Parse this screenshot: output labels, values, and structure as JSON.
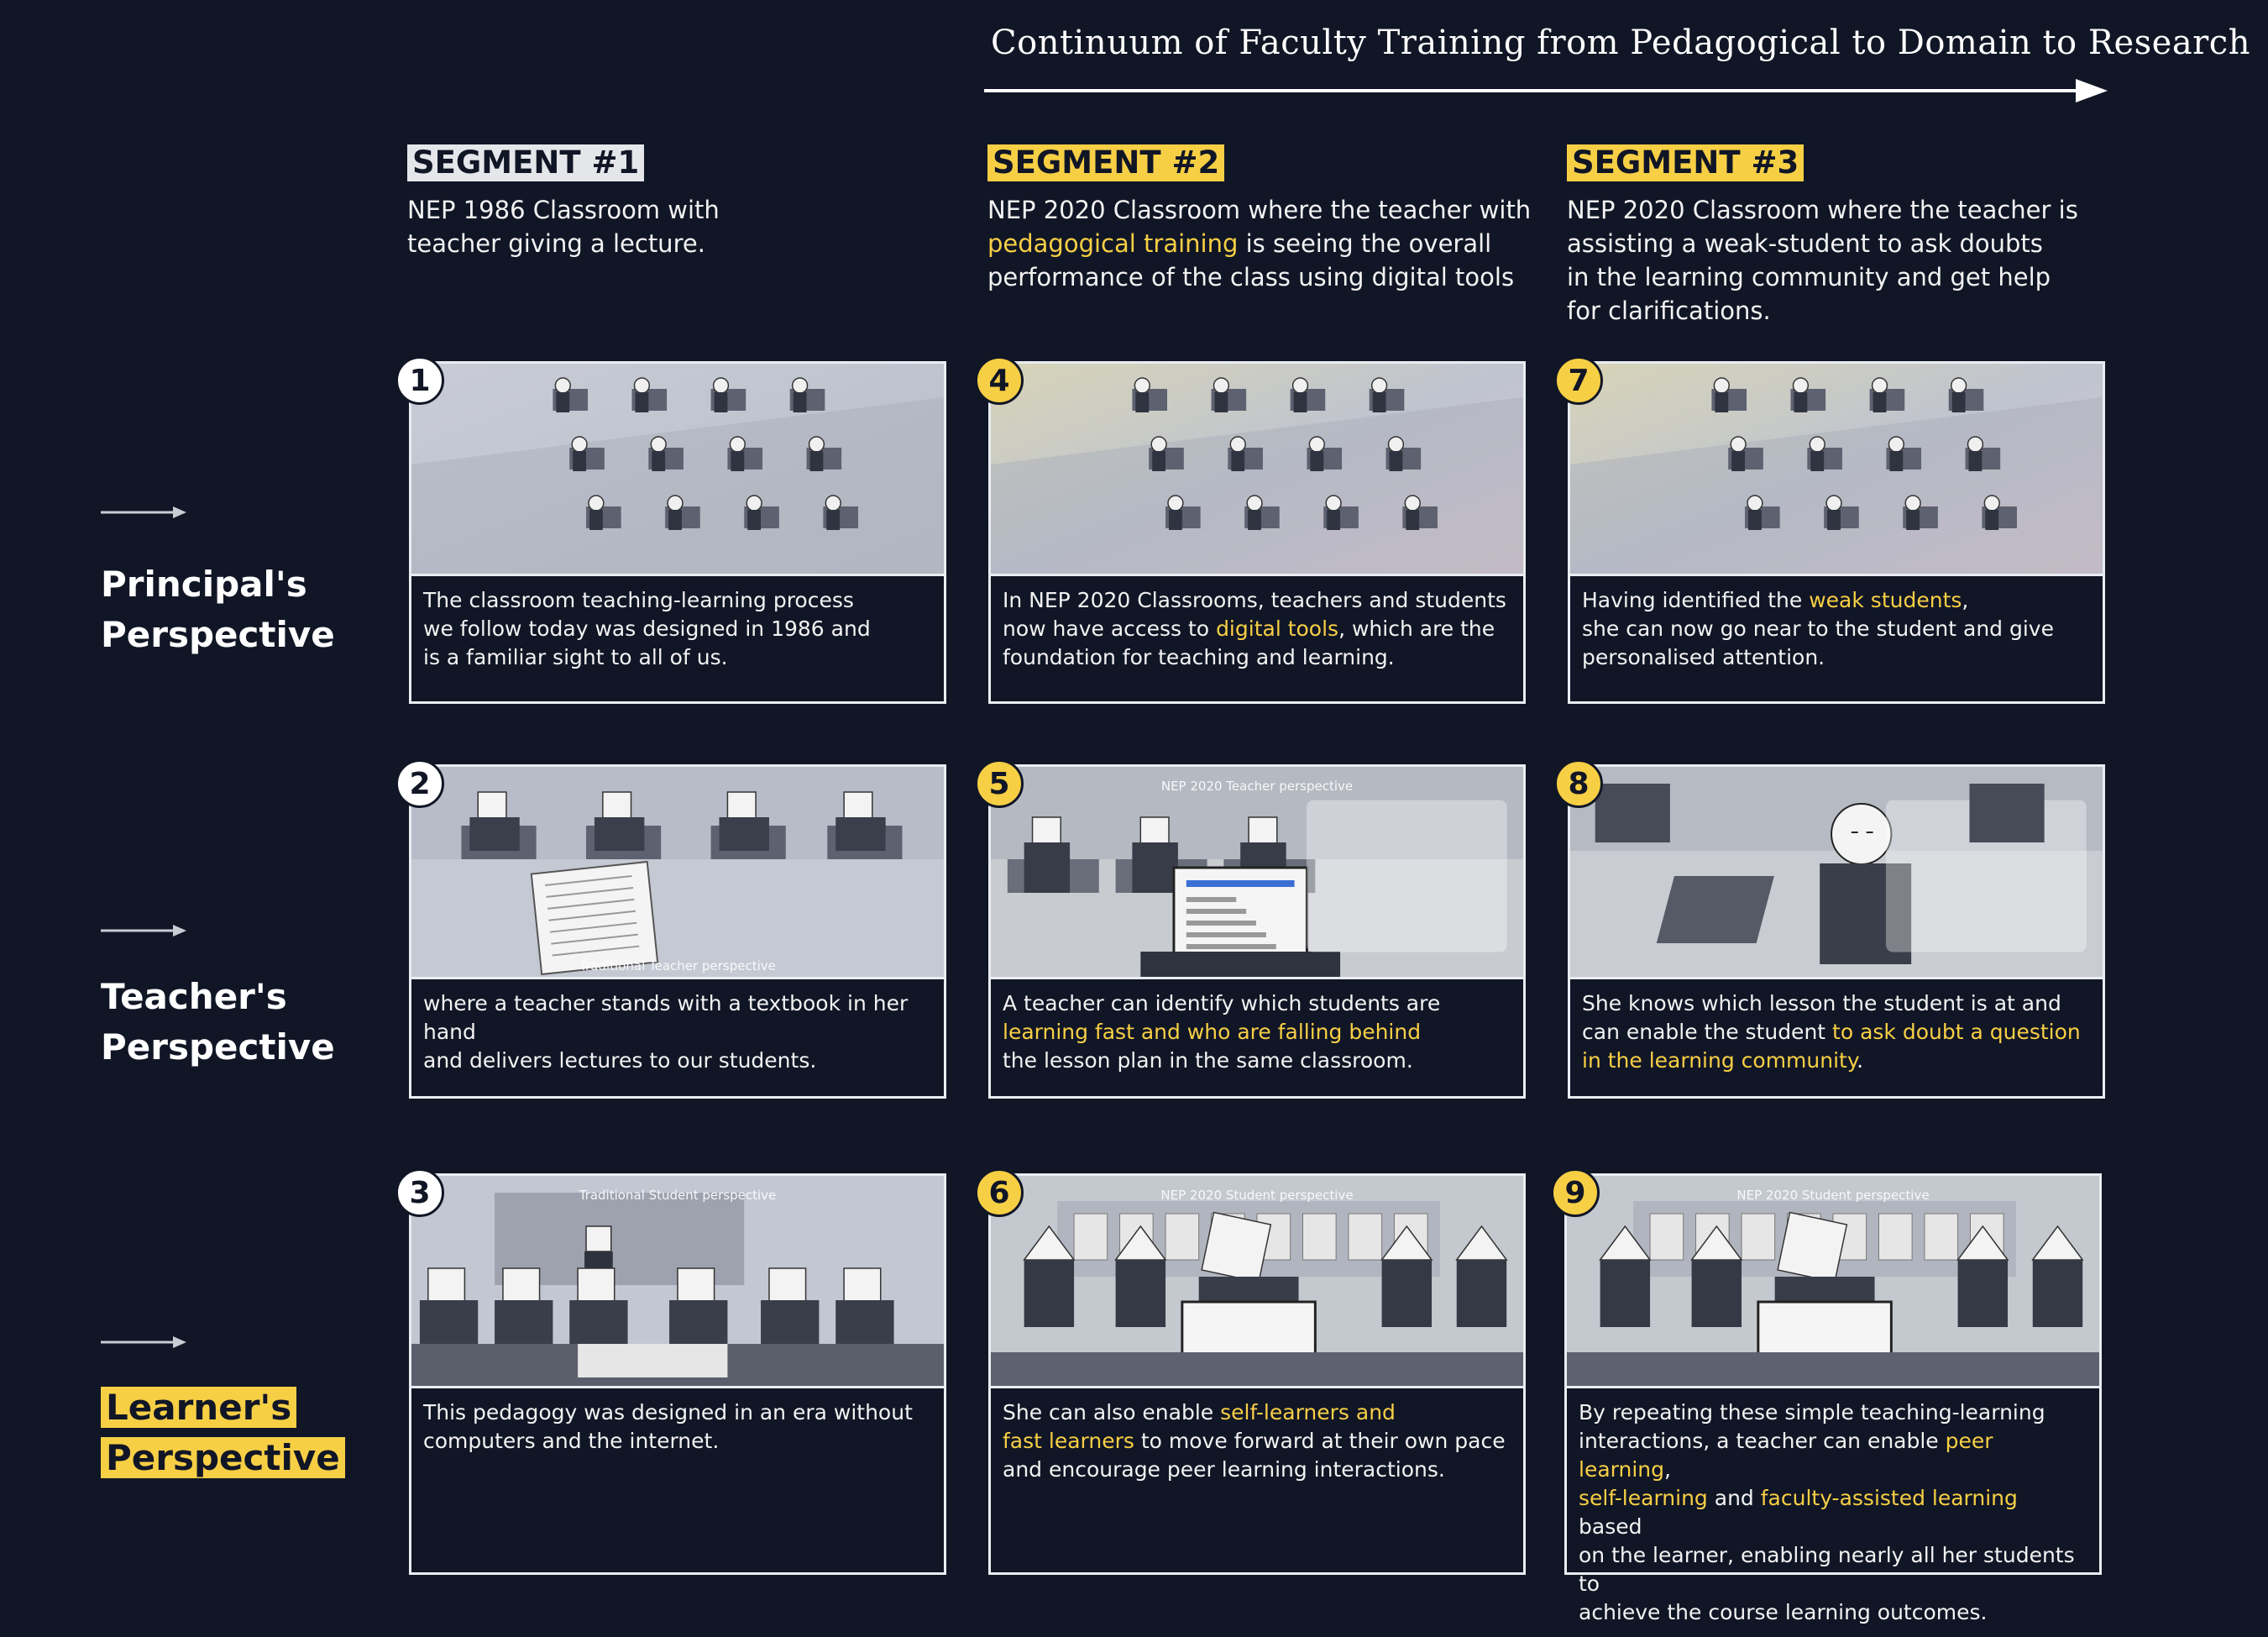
{
  "header": {
    "title": "Continuum of Faculty Training from Pedagogical to Domain to Research"
  },
  "segments": [
    {
      "label": "SEGMENT #1",
      "desc": [
        {
          "t": "NEP 1986 Classroom with "
        },
        {
          "br": true
        },
        {
          "t": "teacher giving a lecture."
        }
      ]
    },
    {
      "label": "SEGMENT #2",
      "desc": [
        {
          "t": "NEP 2020 Classroom where the teacher with "
        },
        {
          "br": true
        },
        {
          "t": "pedagogical training",
          "h": true
        },
        {
          "t": " is seeing the overall "
        },
        {
          "br": true
        },
        {
          "t": "performance of the class using digital tools"
        }
      ]
    },
    {
      "label": "SEGMENT #3",
      "desc": [
        {
          "t": "NEP 2020 Classroom where the teacher is "
        },
        {
          "br": true
        },
        {
          "t": "assisting a weak-student to ask doubts "
        },
        {
          "br": true
        },
        {
          "t": "in the learning community and get help "
        },
        {
          "br": true
        },
        {
          "t": "for clarifications."
        }
      ]
    }
  ],
  "rows": [
    {
      "label_line1": "Principal's",
      "label_line2": "Perspective"
    },
    {
      "label_line1": "Teacher's",
      "label_line2": "Perspective"
    },
    {
      "label_line1": "Learner's",
      "label_line2": "Perspective"
    }
  ],
  "panels": [
    {
      "number": "1",
      "caption": "",
      "text": [
        {
          "t": "The classroom teaching-learning process"
        },
        {
          "br": true
        },
        {
          "t": "we follow today was designed in 1986 and"
        },
        {
          "br": true
        },
        {
          "t": "is a familiar sight to all of us."
        }
      ]
    },
    {
      "number": "2",
      "caption": "Traditional Teacher perspective",
      "text": [
        {
          "t": "where a teacher stands with a textbook in her hand"
        },
        {
          "br": true
        },
        {
          "t": "and delivers lectures to our students."
        }
      ]
    },
    {
      "number": "3",
      "caption": "Traditional Student perspective",
      "text": [
        {
          "t": "This pedagogy was designed in an era without"
        },
        {
          "br": true
        },
        {
          "t": "computers and the internet."
        }
      ]
    },
    {
      "number": "4",
      "caption": "",
      "text": [
        {
          "t": "In NEP 2020 Classrooms, teachers and students"
        },
        {
          "br": true
        },
        {
          "t": "now have access to "
        },
        {
          "t": "digital tools",
          "h": true
        },
        {
          "t": ", which are the"
        },
        {
          "br": true
        },
        {
          "t": "foundation for teaching    and learning."
        }
      ]
    },
    {
      "number": "5",
      "caption": "NEP 2020 Teacher perspective",
      "text": [
        {
          "t": "A teacher can identify which students are"
        },
        {
          "br": true
        },
        {
          "t": "learning fast and who are falling behind",
          "h": true
        },
        {
          "br": true
        },
        {
          "t": "the lesson plan in the same classroom."
        }
      ]
    },
    {
      "number": "6",
      "caption": "NEP 2020 Student perspective",
      "text": [
        {
          "t": "She can also enable "
        },
        {
          "t": "self-learners and",
          "h": true
        },
        {
          "br": true
        },
        {
          "t": "fast learners",
          "h": true
        },
        {
          "t": " to move forward at their own pace"
        },
        {
          "br": true
        },
        {
          "t": "and encourage peer learning interactions."
        }
      ]
    },
    {
      "number": "7",
      "caption": "",
      "text": [
        {
          "t": "Having identified the "
        },
        {
          "t": "weak students",
          "h": true
        },
        {
          "t": ","
        },
        {
          "br": true
        },
        {
          "t": "she can now go near to the student and give"
        },
        {
          "br": true
        },
        {
          "t": "personalised attention."
        }
      ]
    },
    {
      "number": "8",
      "caption": "",
      "text": [
        {
          "t": "She knows which lesson the student is at and"
        },
        {
          "br": true
        },
        {
          "t": "can enable the student "
        },
        {
          "t": "to ask doubt a question",
          "h": true
        },
        {
          "br": true
        },
        {
          "t": "in the learning community",
          "h": true
        },
        {
          "t": "."
        }
      ]
    },
    {
      "number": "9",
      "caption": "NEP 2020 Student perspective",
      "text": [
        {
          "t": "By repeating these simple teaching-learning"
        },
        {
          "br": true
        },
        {
          "t": "interactions, a teacher can enable "
        },
        {
          "t": "peer learning",
          "h": true
        },
        {
          "t": ","
        },
        {
          "br": true
        },
        {
          "t": "self-learning",
          "h": true
        },
        {
          "t": " and "
        },
        {
          "t": "faculty-assisted learning",
          "h": true
        },
        {
          "t": " based"
        },
        {
          "br": true
        },
        {
          "t": "on the learner, enabling nearly all her students to"
        },
        {
          "br": true
        },
        {
          "t": "achieve the course learning outcomes."
        }
      ]
    }
  ],
  "colors": {
    "background": "#111626",
    "accent": "#f7cf45",
    "segment1_badge": "#e4e6ea",
    "panel_border": "#e9edf2"
  },
  "icons": {
    "row_arrow": "right-arrow-icon",
    "continuum_arrow": "long-right-arrow-icon"
  }
}
